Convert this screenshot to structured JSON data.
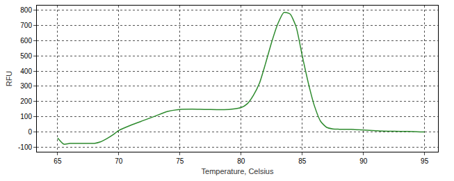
{
  "chart_data": {
    "type": "line",
    "x_label": "Temperature, Celsius",
    "y_label": "RFU",
    "x": [
      65,
      65.5,
      66,
      67,
      68,
      68.5,
      69,
      69.5,
      70,
      71,
      72,
      73,
      74,
      75,
      76,
      77,
      78,
      79,
      79.5,
      80,
      80.5,
      81,
      81.5,
      82,
      82.5,
      83,
      83.5,
      84,
      84.5,
      85,
      85.5,
      86,
      86.5,
      87,
      87.5,
      88,
      89,
      90,
      91,
      92,
      93,
      94,
      95
    ],
    "values": [
      -40,
      -80,
      -75,
      -75,
      -75,
      -65,
      -45,
      -20,
      10,
      45,
      75,
      105,
      135,
      148,
      150,
      148,
      147,
      148,
      152,
      160,
      185,
      240,
      320,
      450,
      590,
      710,
      785,
      775,
      690,
      500,
      320,
      170,
      70,
      30,
      20,
      18,
      17,
      13,
      8,
      5,
      4,
      3,
      0
    ],
    "color": "#2e8b2e",
    "xlim": [
      63.3,
      96.1
    ],
    "ylim": [
      -130,
      830
    ],
    "xticks": [
      65,
      70,
      75,
      80,
      85,
      90,
      95
    ],
    "yticks": [
      -100,
      0,
      100,
      200,
      300,
      400,
      500,
      600,
      700,
      800
    ],
    "grid": true
  }
}
